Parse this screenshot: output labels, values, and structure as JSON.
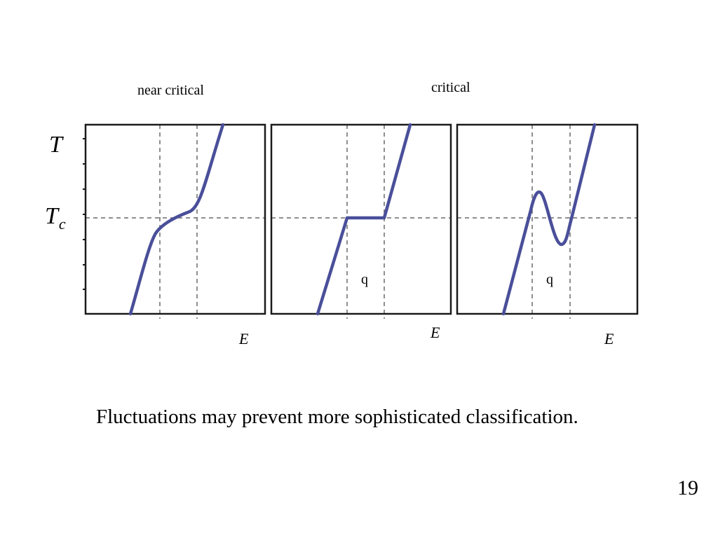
{
  "panel_titles": {
    "near": "near critical",
    "critical": "critical"
  },
  "y_axis": {
    "t_symbol": "T",
    "tc_symbol": "T",
    "tc_subscript": "c"
  },
  "x_axis_label": "E",
  "q_label": "q",
  "caption": "Fluctuations may prevent more sophisticated classification.",
  "slide_number": "19",
  "colors": {
    "curve": "#4a4f9a",
    "frame": "#1a1a1a",
    "dashed": "#6a6a6a"
  },
  "chart_data": [
    {
      "type": "line",
      "subtitle": "near critical",
      "xlabel": "E",
      "y_marks": [
        "T",
        "Tc"
      ],
      "curve_shape": "smooth S-shaped rise, flattening near Tc"
    },
    {
      "type": "line",
      "subtitle": "critical",
      "xlabel": "E",
      "y_marks": [
        "T",
        "Tc"
      ],
      "curve_shape": "linear rise, horizontal plateau at Tc between dashed E lines, linear rise",
      "region_label": "q"
    },
    {
      "type": "line",
      "xlabel": "E",
      "y_marks": [
        "T",
        "Tc"
      ],
      "curve_shape": "linear rise with S-loop (local max above Tc, local min below Tc)",
      "region_label": "q"
    }
  ]
}
